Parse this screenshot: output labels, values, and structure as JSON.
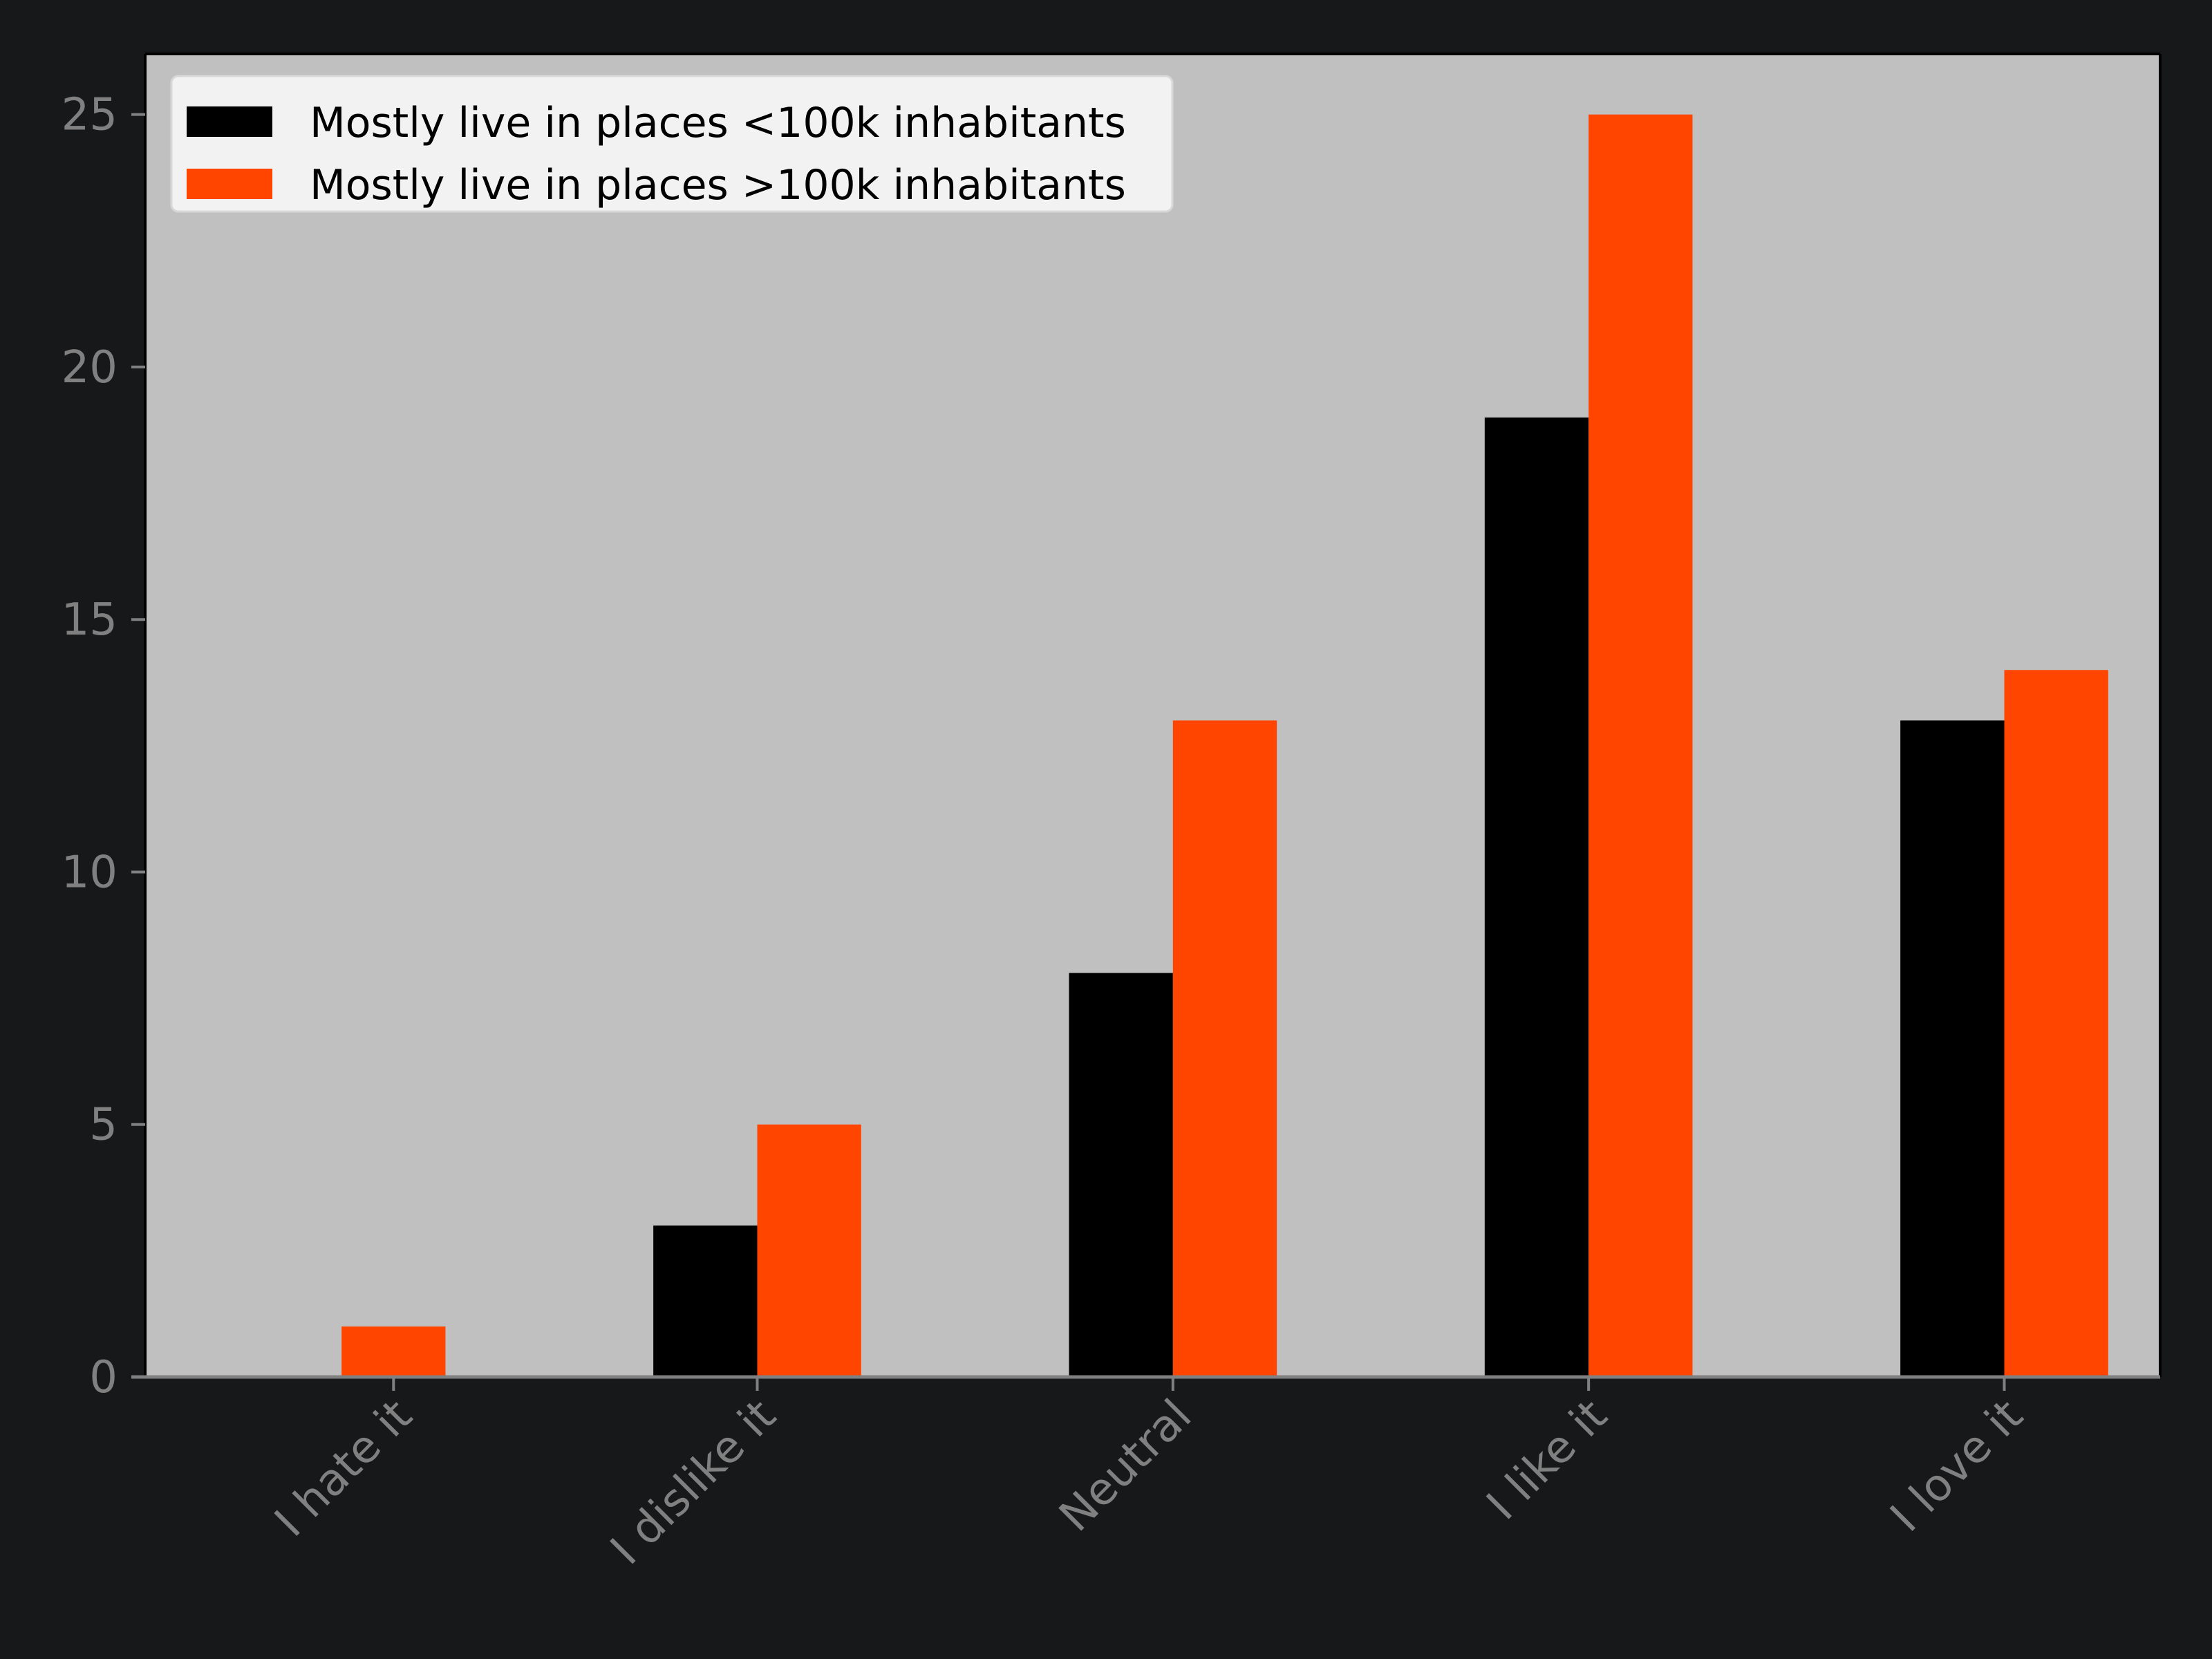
{
  "chart_data": {
    "type": "bar",
    "title": "",
    "xlabel": "",
    "ylabel": "",
    "categories": [
      "I hate it",
      "I dislike it",
      "Neutral",
      "I like it",
      "I love it"
    ],
    "series": [
      {
        "name": "Mostly live in places <100k inhabitants",
        "values": [
          0,
          3,
          8,
          19,
          13
        ],
        "color": "#000000"
      },
      {
        "name": "Mostly live in places >100k inhabitants",
        "values": [
          1,
          5,
          13,
          25,
          14
        ],
        "color": "#ff4500"
      }
    ],
    "ylim": [
      0,
      26.2
    ],
    "yticks": [
      0,
      5,
      10,
      15,
      20,
      25
    ],
    "grid": false,
    "legend_position": "top-left",
    "x_tick_rotation_deg": 45
  },
  "colors": {
    "figure_background": "#17181a",
    "plot_background": "#c0c0c0",
    "tick_label": "#808080",
    "axis_line": "#808080",
    "frame": "#000000",
    "legend_background": "#f2f2f2",
    "legend_text": "#000000"
  }
}
